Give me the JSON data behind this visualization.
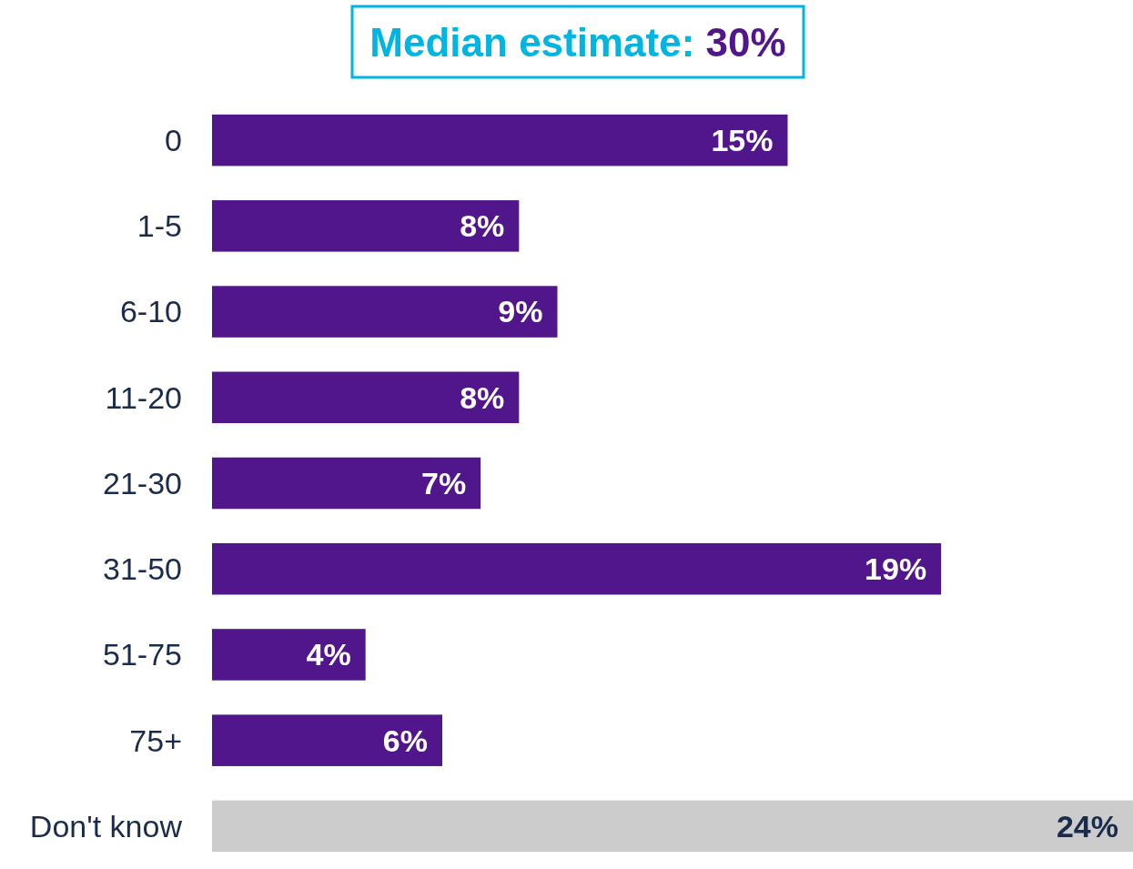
{
  "chart_data": {
    "type": "bar",
    "orientation": "horizontal",
    "title": "Median estimate: 30%",
    "categories": [
      "0",
      "1-5",
      "6-10",
      "11-20",
      "21-30",
      "31-50",
      "51-75",
      "75+",
      "Don't know"
    ],
    "values": [
      15,
      8,
      9,
      8,
      7,
      19,
      4,
      6,
      24
    ],
    "colors": [
      "#52168c",
      "#52168c",
      "#52168c",
      "#52168c",
      "#52168c",
      "#52168c",
      "#52168c",
      "#52168c",
      "#cccccc"
    ],
    "value_labels": [
      "15%",
      "8%",
      "9%",
      "8%",
      "7%",
      "19%",
      "4%",
      "6%",
      "24%"
    ]
  }
}
